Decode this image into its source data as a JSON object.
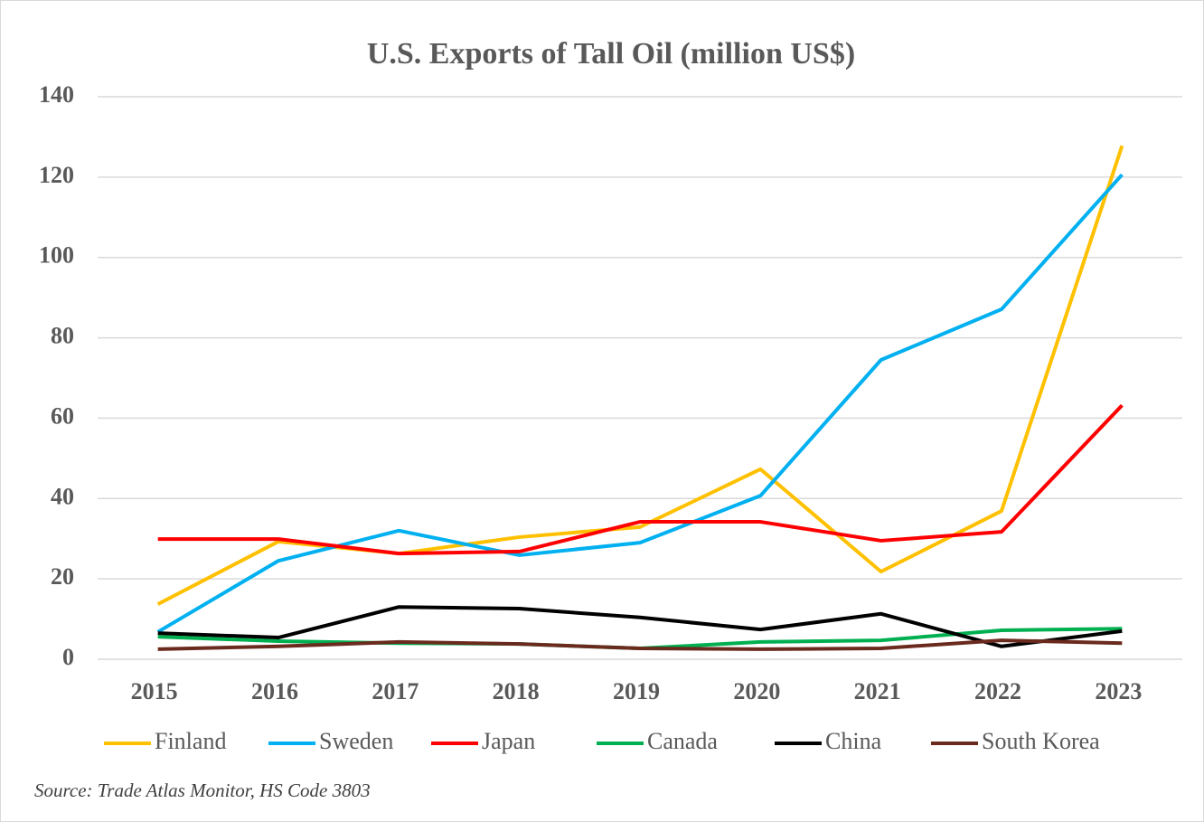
{
  "chart_data": {
    "type": "line",
    "title": "U.S. Exports of Tall Oil (million US$)",
    "categories": [
      "2015",
      "2016",
      "2017",
      "2018",
      "2019",
      "2020",
      "2021",
      "2022",
      "2023"
    ],
    "series": [
      {
        "name": "Finland",
        "color": "#FFC000",
        "values": [
          13.7,
          29.3,
          26.3,
          30.4,
          32.9,
          47.3,
          21.8,
          36.9,
          127.8
        ]
      },
      {
        "name": "Sweden",
        "color": "#00B0F0",
        "values": [
          6.8,
          24.5,
          32,
          25.9,
          29,
          40.7,
          74.5,
          87.1,
          120.6
        ]
      },
      {
        "name": "Japan",
        "color": "#FF0000",
        "values": [
          29.9,
          29.9,
          26.3,
          26.8,
          34.2,
          34.2,
          29.5,
          31.7,
          63.2
        ]
      },
      {
        "name": "Canada",
        "color": "#00B050",
        "values": [
          5.6,
          4.5,
          4,
          3.8,
          2.7,
          4.3,
          4.7,
          7.2,
          7.6
        ]
      },
      {
        "name": "China",
        "color": "#000000",
        "values": [
          6.5,
          5.4,
          13,
          12.6,
          10.4,
          7.4,
          11.3,
          3.2,
          7
        ]
      },
      {
        "name": "South Korea",
        "color": "#6B2A1E",
        "values": [
          2.5,
          3.2,
          4.3,
          3.8,
          2.7,
          2.5,
          2.7,
          4.7,
          4
        ]
      }
    ],
    "ylim": [
      0,
      140
    ],
    "yticks": [
      0,
      20,
      40,
      60,
      80,
      100,
      120,
      140
    ],
    "grid": true,
    "source": "Source: Trade Atlas Monitor, HS Code 3803"
  }
}
